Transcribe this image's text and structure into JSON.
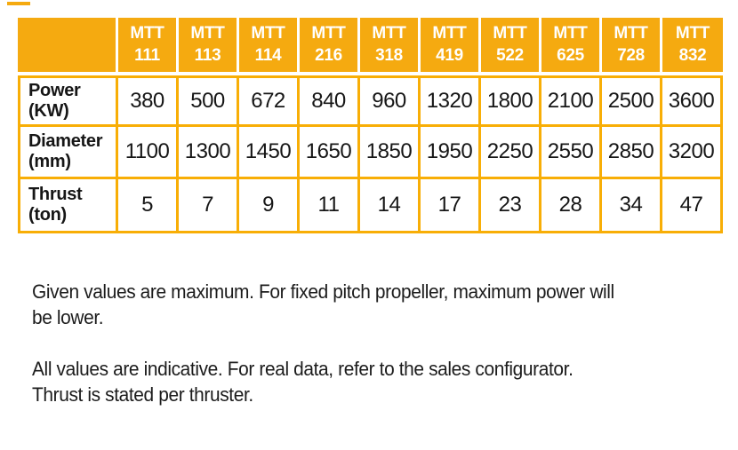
{
  "colors": {
    "table_orange": "#f5aa10",
    "border_orange": "#f8ae06",
    "header_text": "#ffffff",
    "cell_text": "#161616",
    "note_text": "#1c1c1c",
    "page_bg": "#ffffff"
  },
  "table": {
    "columns": [
      "MTT\n111",
      "MTT\n113",
      "MTT\n114",
      "MTT\n216",
      "MTT\n318",
      "MTT\n419",
      "MTT\n522",
      "MTT\n625",
      "MTT\n728",
      "MTT\n832"
    ],
    "rows": [
      {
        "label": "Power\n(KW)",
        "values": [
          "380",
          "500",
          "672",
          "840",
          "960",
          "1320",
          "1800",
          "2100",
          "2500",
          "3600"
        ]
      },
      {
        "label": "Diameter\n(mm)",
        "values": [
          "1100",
          "1300",
          "1450",
          "1650",
          "1850",
          "1950",
          "2250",
          "2550",
          "2850",
          "3200"
        ]
      },
      {
        "label": "Thrust\n(ton)",
        "values": [
          "5",
          "7",
          "9",
          "11",
          "14",
          "17",
          "23",
          "28",
          "34",
          "47"
        ]
      }
    ]
  },
  "notes": [
    "Given values are maximum. For fixed pitch propeller, maximum power will\nbe lower.",
    "All values are indicative. For real data, refer to the sales configurator.\nThrust is stated per thruster."
  ]
}
